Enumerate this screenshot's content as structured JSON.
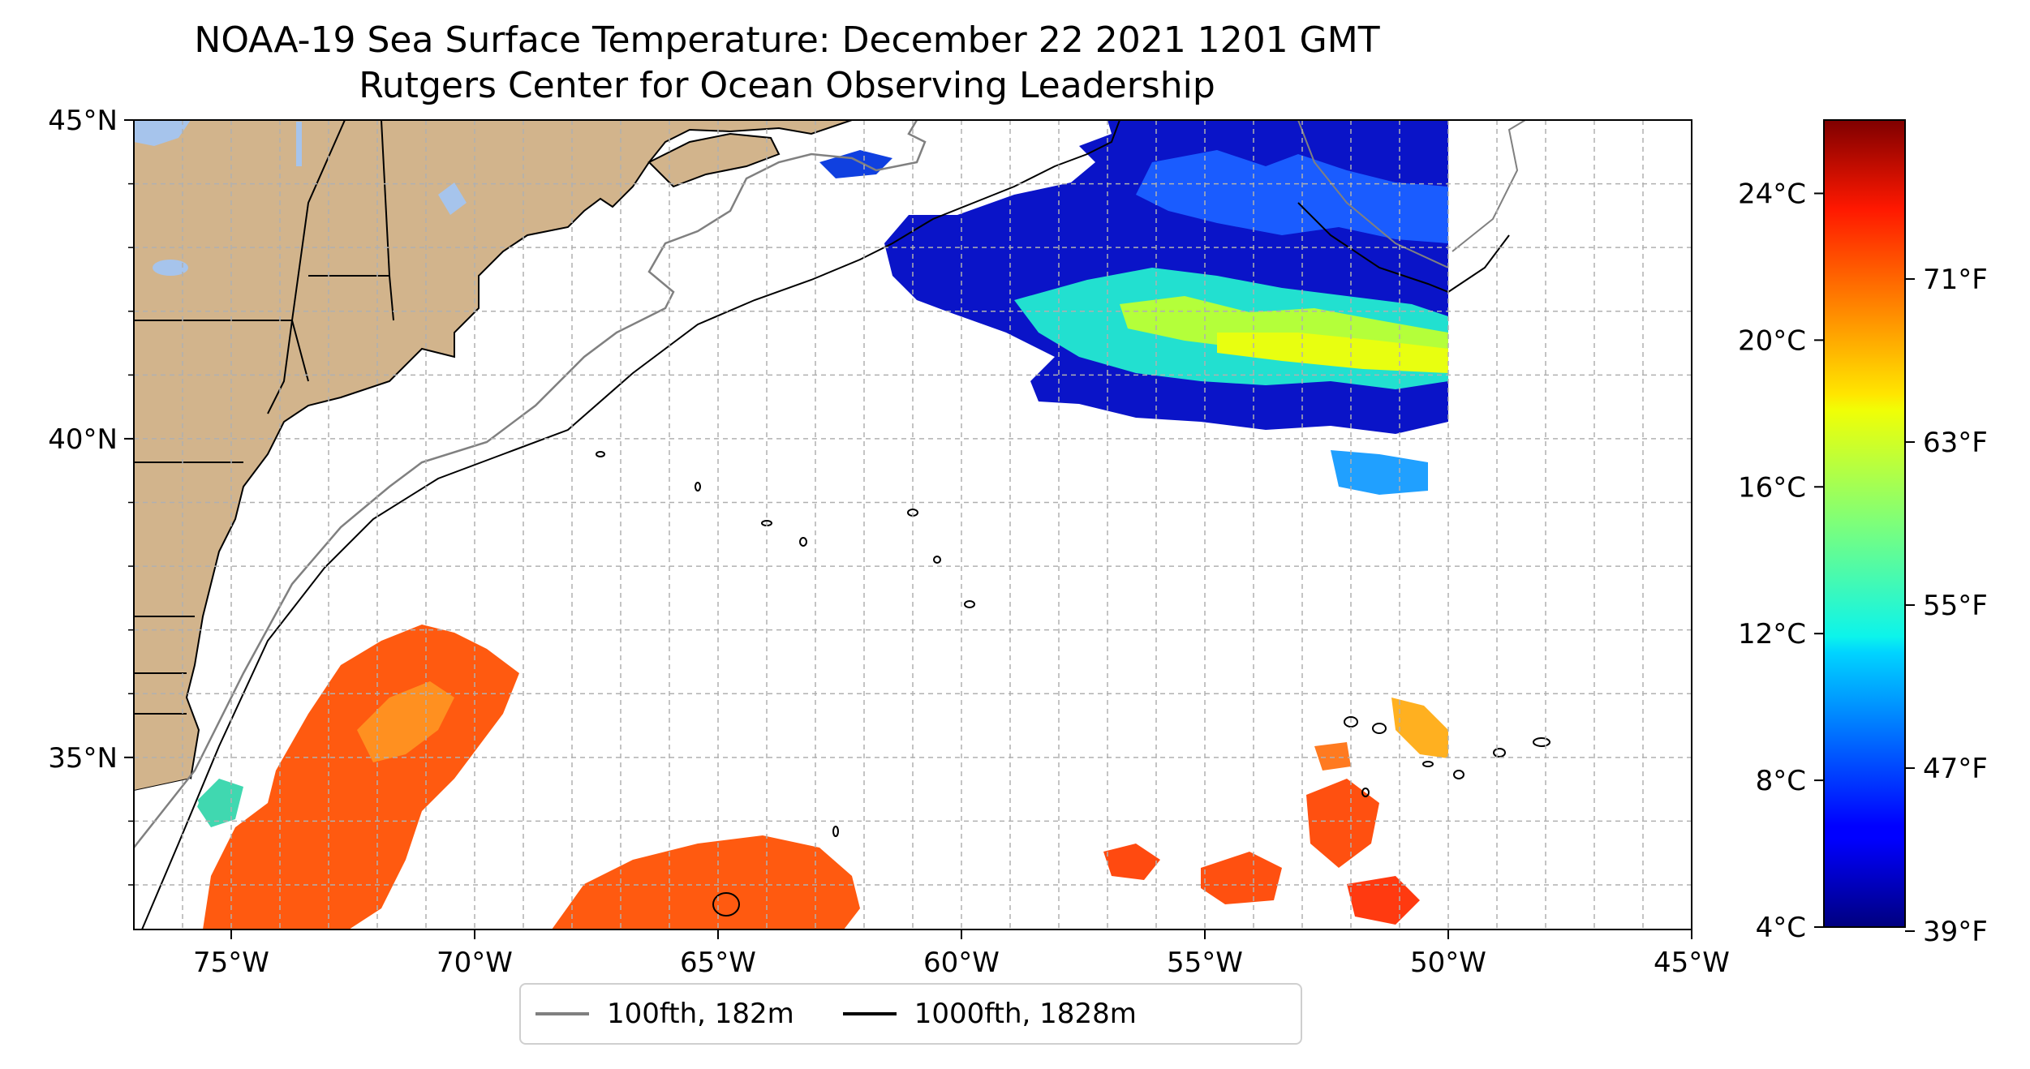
{
  "title": {
    "line1": "NOAA-19 Sea Surface Temperature: December 22 2021 1201 GMT",
    "line2": "Rutgers Center for Ocean Observing Leadership"
  },
  "map": {
    "lon_range": [
      -77,
      -45
    ],
    "lat_range": [
      32.3,
      45
    ],
    "lon_ticks": [
      {
        "value": -75,
        "label": "75°W"
      },
      {
        "value": -70,
        "label": "70°W"
      },
      {
        "value": -65,
        "label": "65°W"
      },
      {
        "value": -60,
        "label": "60°W"
      },
      {
        "value": -55,
        "label": "55°W"
      },
      {
        "value": -50,
        "label": "50°W"
      },
      {
        "value": -45,
        "label": "45°W"
      }
    ],
    "lat_ticks": [
      {
        "value": 45,
        "label": "45°N"
      },
      {
        "value": 40,
        "label": "40°N"
      },
      {
        "value": 35,
        "label": "35°N"
      }
    ],
    "grid": true,
    "colors": {
      "land": "#d2b48c",
      "lakes": "#a6c4ec",
      "isobath_100": "#808080",
      "isobath_1000": "#000000"
    }
  },
  "colorbar": {
    "celsius_ticks": [
      {
        "value": 24,
        "label": "24°C"
      },
      {
        "value": 20,
        "label": "20°C"
      },
      {
        "value": 16,
        "label": "16°C"
      },
      {
        "value": 12,
        "label": "12°C"
      },
      {
        "value": 8,
        "label": "8°C"
      },
      {
        "value": 4,
        "label": "4°C"
      }
    ],
    "fahrenheit_ticks": [
      {
        "value": 71,
        "label": "71°F"
      },
      {
        "value": 63,
        "label": "63°F"
      },
      {
        "value": 55,
        "label": "55°F"
      },
      {
        "value": 47,
        "label": "47°F"
      },
      {
        "value": 39,
        "label": "39°F"
      }
    ],
    "range_c": [
      4,
      26
    ],
    "colormap": "jet"
  },
  "legend": {
    "items": [
      {
        "label": "100fth, 182m",
        "color": "#808080"
      },
      {
        "label": "1000fth, 1828m",
        "color": "#000000"
      }
    ]
  }
}
